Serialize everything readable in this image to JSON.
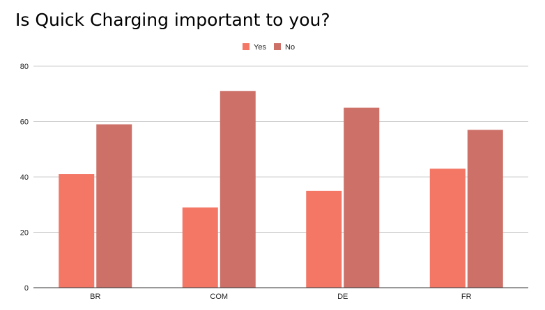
{
  "chart_data": {
    "type": "bar",
    "title": "Is Quick Charging important to you?",
    "categories": [
      "BR",
      "COM",
      "DE",
      "FR"
    ],
    "series": [
      {
        "name": "Yes",
        "values": [
          41,
          29,
          35,
          43
        ],
        "color": "#f47766"
      },
      {
        "name": "No",
        "values": [
          59,
          71,
          65,
          57
        ],
        "color": "#cc7068"
      }
    ],
    "xlabel": "",
    "ylabel": "",
    "ylim": [
      0,
      80
    ],
    "yticks": [
      0,
      20,
      40,
      60,
      80
    ],
    "grid": true,
    "legend_position": "top-center",
    "colors": {
      "gridline": "#cccccc",
      "baseline": "#333333"
    }
  }
}
